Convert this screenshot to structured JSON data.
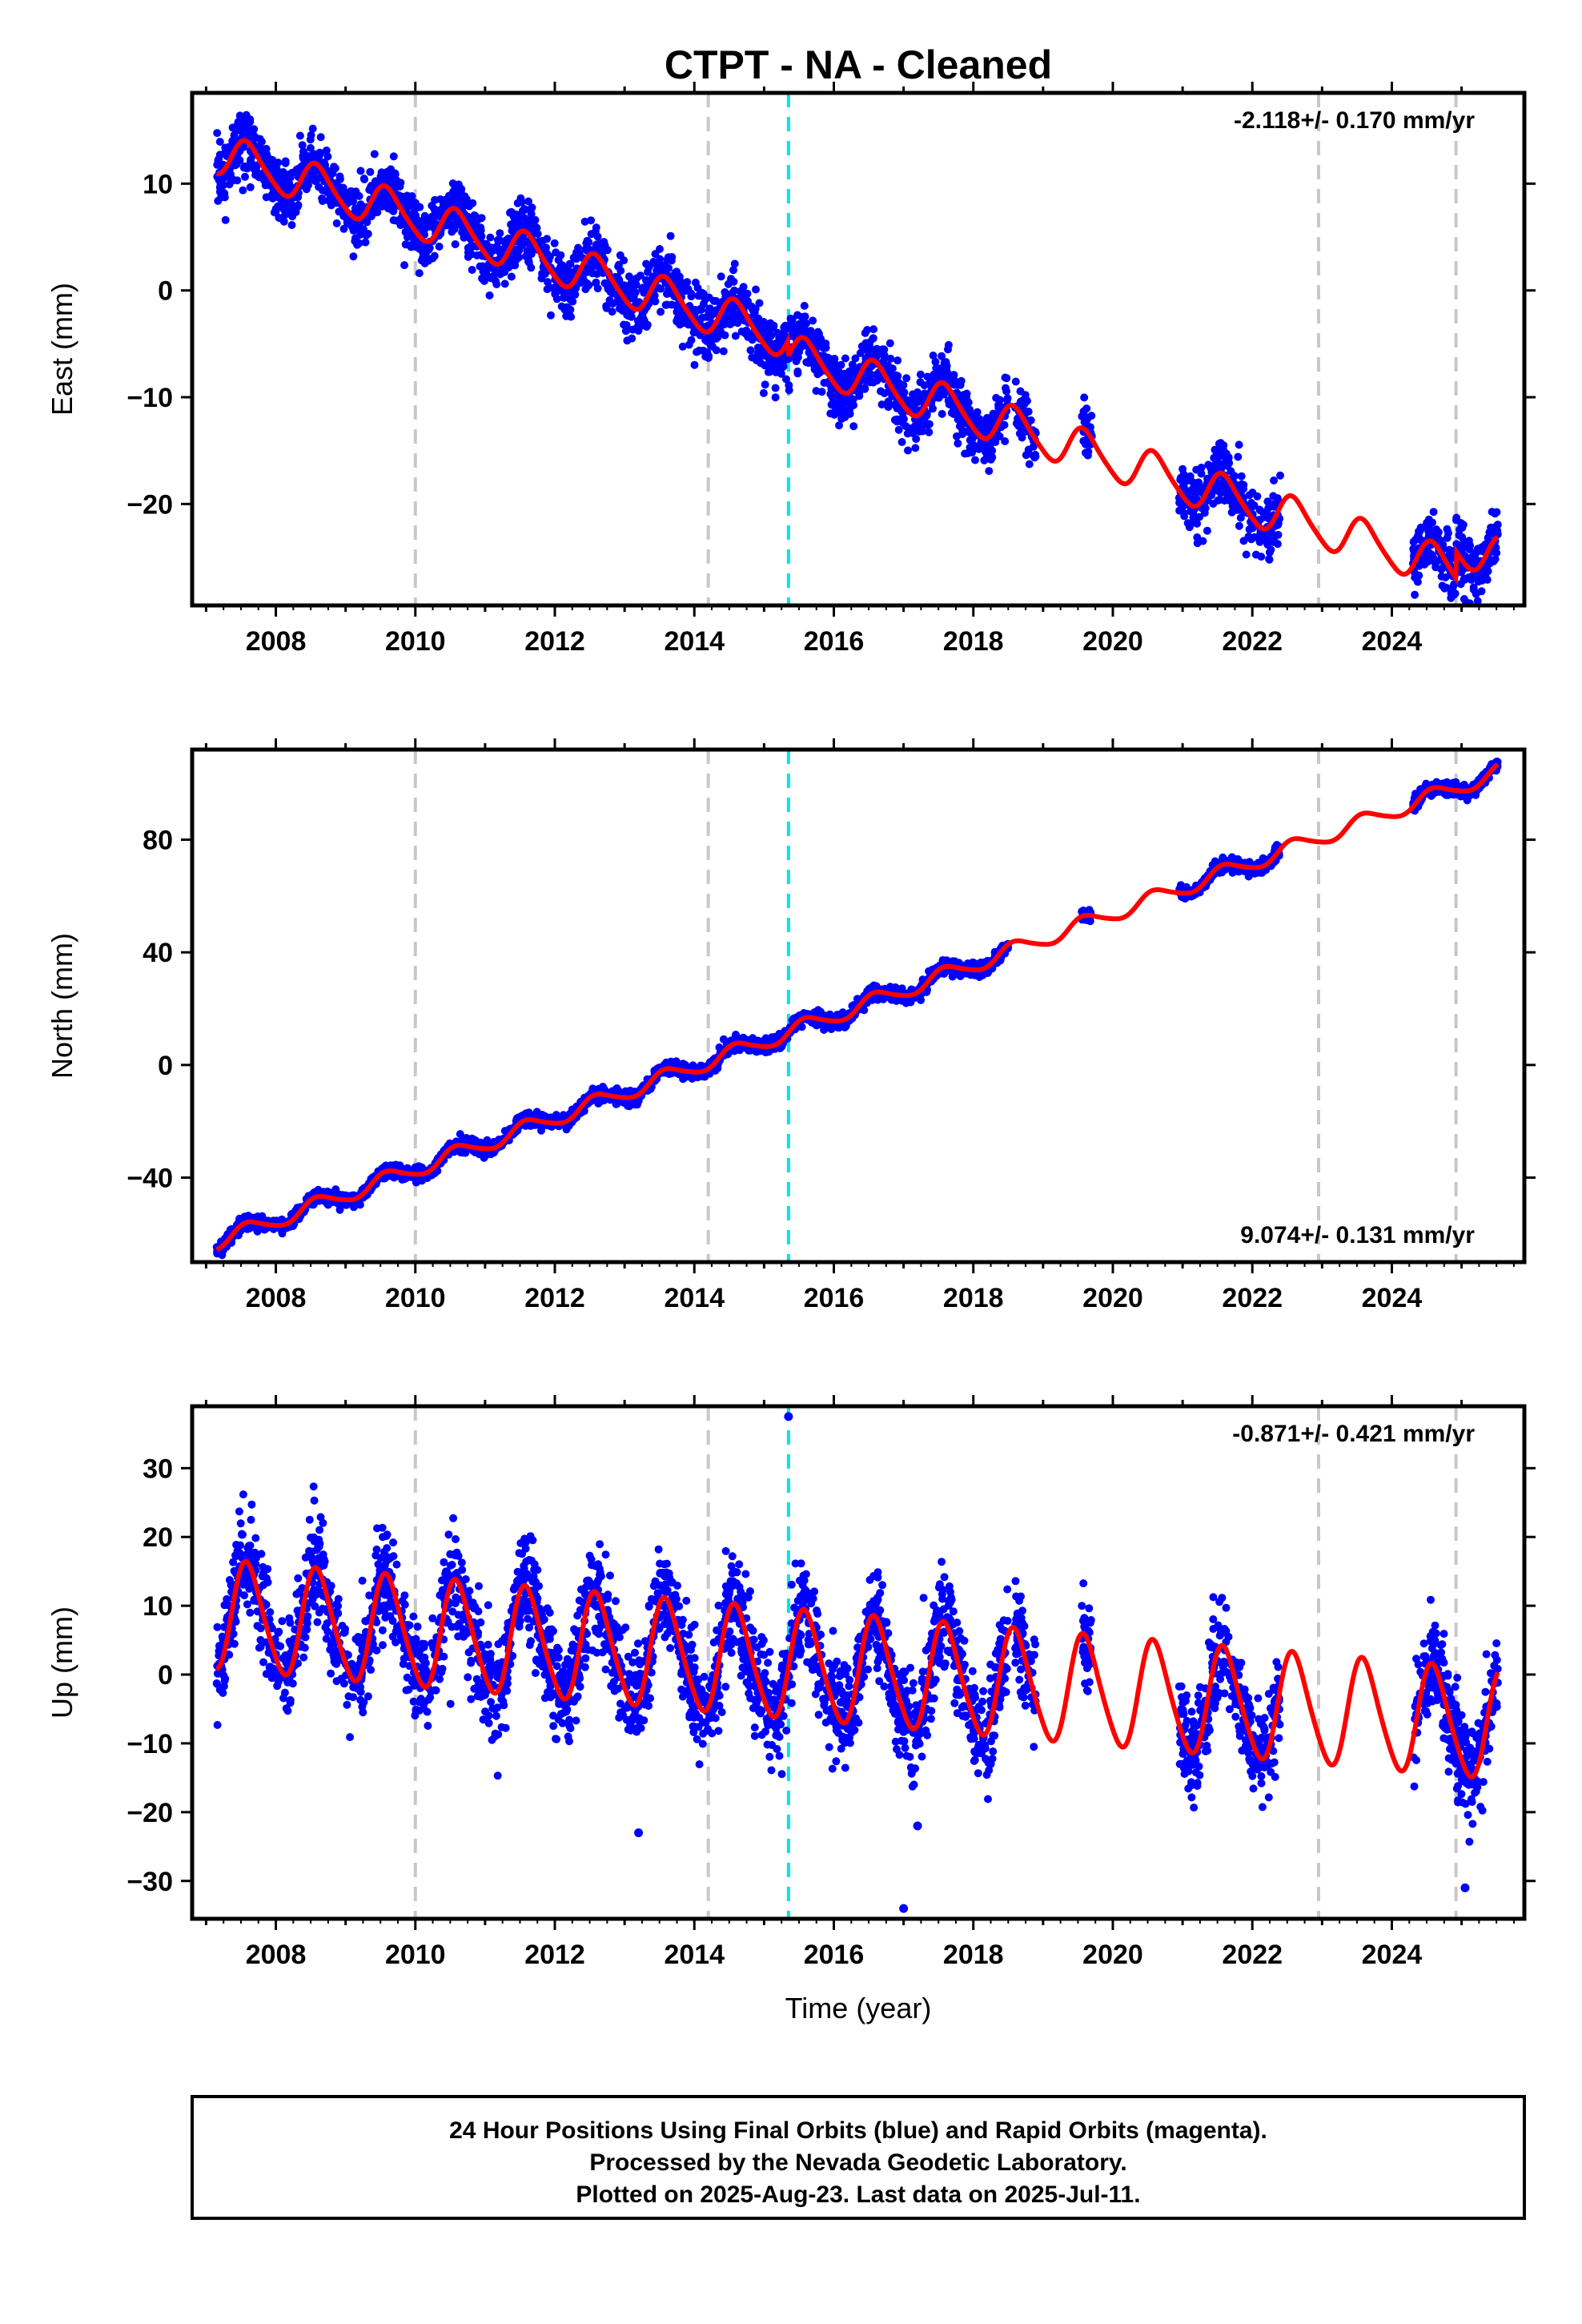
{
  "figure": {
    "title": "CTPT  - NA - Cleaned",
    "xlabel": "Time (year)",
    "footer": [
      "24 Hour Positions Using Final Orbits (blue) and Rapid Orbits (magenta).",
      "Processed by the Nevada Geodetic Laboratory.",
      "Plotted on 2025-Aug-23. Last data on 2025-Jul-11."
    ],
    "colors": {
      "final_orbits": "#0000ff",
      "model_fit": "#ff0000",
      "event_lines": "#c8c8c8",
      "antenna_change_line": "#00e5e5",
      "frame": "#000000"
    }
  },
  "chart_data": [
    {
      "type": "scatter",
      "name": "east",
      "ylabel": "East (mm)",
      "rate_label": "-2.118+/- 0.170 mm/yr",
      "rate_position": "top-right",
      "xlim": [
        2006.8,
        2025.9
      ],
      "ylim": [
        -29.5,
        18.5
      ],
      "xticks": [
        2008,
        2010,
        2012,
        2014,
        2016,
        2018,
        2020,
        2022,
        2024
      ],
      "yticks": [
        10,
        0,
        -10,
        -20
      ],
      "ytick_labels": [
        "10",
        "0",
        "−10",
        "−20"
      ],
      "event_lines": [
        2010.0,
        2014.2,
        2022.95,
        2024.92
      ],
      "antenna_change_lines": [
        2015.35
      ],
      "data_segments": [
        [
          2007.15,
          2018.5
        ],
        [
          2018.6,
          2018.9
        ],
        [
          2019.55,
          2019.7
        ],
        [
          2020.95,
          2022.4
        ],
        [
          2024.3,
          2025.52
        ]
      ],
      "model": {
        "ref_year": 2016.0,
        "offset": -5.9,
        "slope": -2.118,
        "annual_amp": 1.9,
        "annual_phase": 0.0,
        "semiannual_amp": 0.3,
        "semiannual_phase": 0.0,
        "steps": [
          [
            2015.35,
            -1.5
          ],
          [
            2024.92,
            2.5
          ]
        ]
      },
      "scatter_sd": 1.4,
      "grid": false
    },
    {
      "type": "scatter",
      "name": "north",
      "ylabel": "North (mm)",
      "rate_label": "9.074+/- 0.131 mm/yr",
      "rate_position": "bottom-right",
      "xlim": [
        2006.8,
        2025.9
      ],
      "ylim": [
        -70,
        112
      ],
      "xticks": [
        2008,
        2010,
        2012,
        2014,
        2016,
        2018,
        2020,
        2022,
        2024
      ],
      "yticks": [
        80,
        40,
        0,
        -40
      ],
      "ytick_labels": [
        "80",
        "40",
        "0",
        "−40"
      ],
      "event_lines": [
        2010.0,
        2014.2,
        2022.95,
        2024.92
      ],
      "antenna_change_lines": [
        2015.35
      ],
      "data_segments": [
        [
          2007.15,
          2018.5
        ],
        [
          2019.55,
          2019.7
        ],
        [
          2020.95,
          2022.4
        ],
        [
          2024.3,
          2025.52
        ]
      ],
      "model": {
        "ref_year": 2016.0,
        "offset": 17.5,
        "slope": 9.074,
        "annual_amp": 2.8,
        "annual_phase": 0.0,
        "semiannual_amp": 0.4,
        "semiannual_phase": 0.0,
        "steps": []
      },
      "scatter_sd": 1.2,
      "grid": false
    },
    {
      "type": "scatter",
      "name": "up",
      "ylabel": "Up (mm)",
      "rate_label": "-0.871+/- 0.421 mm/yr",
      "rate_position": "top-right",
      "xlim": [
        2006.8,
        2025.9
      ],
      "ylim": [
        -35.5,
        39
      ],
      "xticks": [
        2008,
        2010,
        2012,
        2014,
        2016,
        2018,
        2020,
        2022,
        2024
      ],
      "yticks": [
        30,
        20,
        10,
        0,
        -10,
        -20,
        -30
      ],
      "ytick_labels": [
        "30",
        "20",
        "10",
        "0",
        "−10",
        "−20",
        "−30"
      ],
      "event_lines": [
        2010.0,
        2014.2,
        2022.95,
        2024.92
      ],
      "antenna_change_lines": [
        2015.35
      ],
      "data_segments": [
        [
          2007.15,
          2018.5
        ],
        [
          2018.6,
          2018.9
        ],
        [
          2019.55,
          2019.7
        ],
        [
          2020.95,
          2022.4
        ],
        [
          2024.3,
          2025.52
        ]
      ],
      "model": {
        "ref_year": 2016.0,
        "offset": 0.8,
        "slope": -0.871,
        "annual_amp": 7.8,
        "annual_phase": 0.0,
        "semiannual_amp": 1.0,
        "semiannual_phase": 0.0,
        "steps": []
      },
      "scatter_sd": 3.6,
      "outliers": [
        [
          2015.35,
          37.5
        ],
        [
          2013.2,
          -23.0
        ],
        [
          2017.0,
          -34.0
        ],
        [
          2025.05,
          -31.0
        ],
        [
          2017.2,
          -22.0
        ]
      ],
      "grid": false
    }
  ]
}
